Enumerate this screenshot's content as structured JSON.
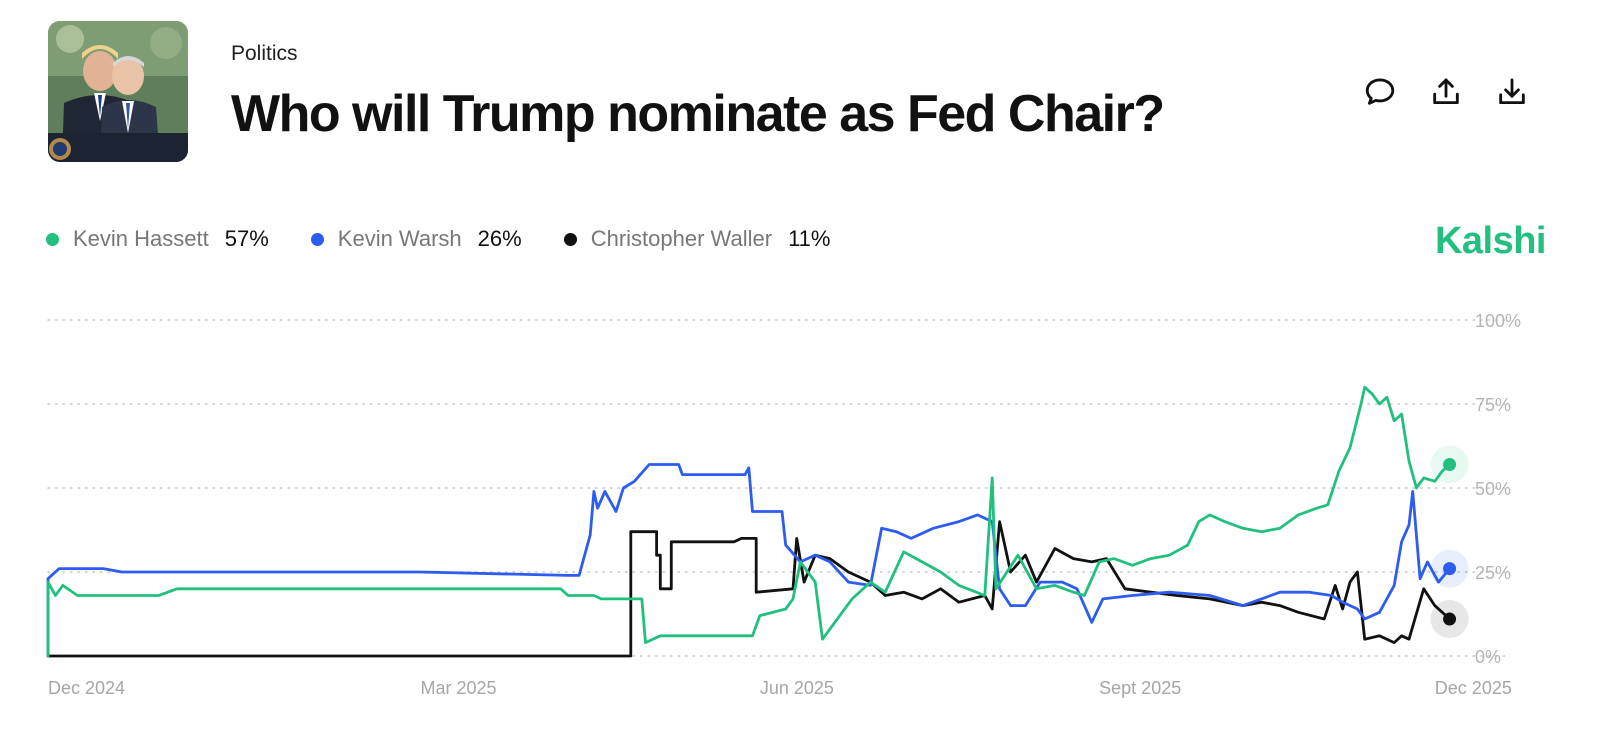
{
  "header": {
    "category": "Politics",
    "title": "Who will Trump nominate as Fed Chair?",
    "brand": "Kalshi",
    "actions": [
      {
        "name": "comment",
        "icon": "comment-icon"
      },
      {
        "name": "share",
        "icon": "share-icon"
      },
      {
        "name": "download",
        "icon": "download-icon"
      }
    ]
  },
  "legend": [
    {
      "name": "Kevin Hassett",
      "value": "57%",
      "color": "#21c07f"
    },
    {
      "name": "Kevin Warsh",
      "value": "26%",
      "color": "#2c5cf0"
    },
    {
      "name": "Christopher Waller",
      "value": "11%",
      "color": "#111111"
    }
  ],
  "chart_data": {
    "type": "line",
    "title": "Who will Trump nominate as Fed Chair?",
    "xlabel": "",
    "ylabel": "",
    "x_range": [
      "2024-11-20",
      "2025-12-10"
    ],
    "ylim": [
      0,
      100
    ],
    "y_ticks": [
      0,
      25,
      50,
      75,
      100
    ],
    "y_tick_labels": [
      "0%",
      "25%",
      "50%",
      "75%",
      "100%"
    ],
    "x_ticks": [
      {
        "date": "2024-11-20",
        "label": "Dec 2024"
      },
      {
        "date": "2025-03-01",
        "label": "Mar 2025"
      },
      {
        "date": "2025-06-01",
        "label": "Jun 2025"
      },
      {
        "date": "2025-09-01",
        "label": "Sept 2025"
      },
      {
        "date": "2025-12-01",
        "label": "Dec 2025"
      }
    ],
    "grid": true,
    "series": [
      {
        "name": "Kevin Hassett",
        "color": "#21c07f",
        "last_value": 57,
        "points": [
          [
            "2024-11-20",
            0
          ],
          [
            "2024-11-20",
            22
          ],
          [
            "2024-11-22",
            18
          ],
          [
            "2024-11-24",
            21
          ],
          [
            "2024-11-28",
            18
          ],
          [
            "2024-12-20",
            18
          ],
          [
            "2024-12-25",
            20
          ],
          [
            "2025-01-30",
            20
          ],
          [
            "2025-03-10",
            20
          ],
          [
            "2025-04-08",
            20
          ],
          [
            "2025-04-10",
            18
          ],
          [
            "2025-04-17",
            18
          ],
          [
            "2025-04-19",
            17
          ],
          [
            "2025-04-30",
            17
          ],
          [
            "2025-05-01",
            4
          ],
          [
            "2025-05-05",
            6
          ],
          [
            "2025-05-20",
            6
          ],
          [
            "2025-05-30",
            6
          ],
          [
            "2025-06-01",
            12
          ],
          [
            "2025-06-08",
            14
          ],
          [
            "2025-06-10",
            17
          ],
          [
            "2025-06-12",
            28
          ],
          [
            "2025-06-16",
            22
          ],
          [
            "2025-06-18",
            5
          ],
          [
            "2025-06-22",
            11
          ],
          [
            "2025-06-26",
            17
          ],
          [
            "2025-07-01",
            22
          ],
          [
            "2025-07-05",
            19
          ],
          [
            "2025-07-10",
            31
          ],
          [
            "2025-07-15",
            28
          ],
          [
            "2025-07-20",
            25
          ],
          [
            "2025-07-25",
            21
          ],
          [
            "2025-08-01",
            18
          ],
          [
            "2025-08-03",
            53
          ],
          [
            "2025-08-04",
            20
          ],
          [
            "2025-08-10",
            30
          ],
          [
            "2025-08-15",
            20
          ],
          [
            "2025-08-20",
            21
          ],
          [
            "2025-08-25",
            19
          ],
          [
            "2025-08-28",
            18
          ],
          [
            "2025-09-01",
            28
          ],
          [
            "2025-09-05",
            29
          ],
          [
            "2025-09-10",
            27
          ],
          [
            "2025-09-15",
            29
          ],
          [
            "2025-09-20",
            30
          ],
          [
            "2025-09-25",
            33
          ],
          [
            "2025-09-28",
            40
          ],
          [
            "2025-10-01",
            42
          ],
          [
            "2025-10-05",
            40
          ],
          [
            "2025-10-10",
            38
          ],
          [
            "2025-10-15",
            37
          ],
          [
            "2025-10-20",
            38
          ],
          [
            "2025-10-25",
            42
          ],
          [
            "2025-10-30",
            44
          ],
          [
            "2025-11-02",
            45
          ],
          [
            "2025-11-05",
            55
          ],
          [
            "2025-11-08",
            62
          ],
          [
            "2025-11-11",
            75
          ],
          [
            "2025-11-12",
            80
          ],
          [
            "2025-11-14",
            78
          ],
          [
            "2025-11-16",
            75
          ],
          [
            "2025-11-18",
            77
          ],
          [
            "2025-11-20",
            70
          ],
          [
            "2025-11-22",
            72
          ],
          [
            "2025-11-24",
            58
          ],
          [
            "2025-11-26",
            50
          ],
          [
            "2025-11-28",
            53
          ],
          [
            "2025-12-01",
            52
          ],
          [
            "2025-12-03",
            55
          ],
          [
            "2025-12-05",
            57
          ]
        ]
      },
      {
        "name": "Kevin Warsh",
        "color": "#2c5cf0",
        "last_value": 26,
        "points": [
          [
            "2024-11-20",
            0
          ],
          [
            "2024-11-20",
            23
          ],
          [
            "2024-11-23",
            26
          ],
          [
            "2024-12-05",
            26
          ],
          [
            "2024-12-10",
            25
          ],
          [
            "2025-03-01",
            25
          ],
          [
            "2025-04-10",
            24
          ],
          [
            "2025-04-13",
            24
          ],
          [
            "2025-04-14",
            28
          ],
          [
            "2025-04-16",
            36
          ],
          [
            "2025-04-17",
            49
          ],
          [
            "2025-04-18",
            44
          ],
          [
            "2025-04-20",
            49
          ],
          [
            "2025-04-23",
            43
          ],
          [
            "2025-04-25",
            50
          ],
          [
            "2025-04-28",
            52
          ],
          [
            "2025-05-02",
            57
          ],
          [
            "2025-05-10",
            57
          ],
          [
            "2025-05-11",
            54
          ],
          [
            "2025-05-20",
            54
          ],
          [
            "2025-05-28",
            54
          ],
          [
            "2025-05-29",
            56
          ],
          [
            "2025-05-30",
            43
          ],
          [
            "2025-06-07",
            43
          ],
          [
            "2025-06-08",
            33
          ],
          [
            "2025-06-12",
            28
          ],
          [
            "2025-06-16",
            30
          ],
          [
            "2025-06-20",
            28
          ],
          [
            "2025-06-25",
            22
          ],
          [
            "2025-07-01",
            21
          ],
          [
            "2025-07-04",
            38
          ],
          [
            "2025-07-08",
            37
          ],
          [
            "2025-07-12",
            35
          ],
          [
            "2025-07-18",
            38
          ],
          [
            "2025-07-25",
            40
          ],
          [
            "2025-07-30",
            42
          ],
          [
            "2025-08-03",
            40
          ],
          [
            "2025-08-05",
            20
          ],
          [
            "2025-08-08",
            15
          ],
          [
            "2025-08-12",
            15
          ],
          [
            "2025-08-16",
            22
          ],
          [
            "2025-08-22",
            22
          ],
          [
            "2025-08-26",
            20
          ],
          [
            "2025-08-30",
            10
          ],
          [
            "2025-09-02",
            17
          ],
          [
            "2025-09-10",
            18
          ],
          [
            "2025-09-20",
            19
          ],
          [
            "2025-10-01",
            18
          ],
          [
            "2025-10-10",
            15
          ],
          [
            "2025-10-15",
            17
          ],
          [
            "2025-10-20",
            19
          ],
          [
            "2025-10-28",
            19
          ],
          [
            "2025-11-03",
            18
          ],
          [
            "2025-11-06",
            16
          ],
          [
            "2025-11-10",
            14
          ],
          [
            "2025-11-12",
            11
          ],
          [
            "2025-11-16",
            13
          ],
          [
            "2025-11-20",
            21
          ],
          [
            "2025-11-22",
            34
          ],
          [
            "2025-11-24",
            39
          ],
          [
            "2025-11-25",
            49
          ],
          [
            "2025-11-27",
            23
          ],
          [
            "2025-11-29",
            28
          ],
          [
            "2025-12-02",
            22
          ],
          [
            "2025-12-05",
            26
          ]
        ]
      },
      {
        "name": "Christopher Waller",
        "color": "#111111",
        "last_value": 11,
        "points": [
          [
            "2024-11-20",
            0
          ],
          [
            "2025-04-27",
            0
          ],
          [
            "2025-04-27",
            37
          ],
          [
            "2025-05-04",
            37
          ],
          [
            "2025-05-04",
            30
          ],
          [
            "2025-05-05",
            30
          ],
          [
            "2025-05-05",
            20
          ],
          [
            "2025-05-08",
            20
          ],
          [
            "2025-05-08",
            34
          ],
          [
            "2025-05-25",
            34
          ],
          [
            "2025-05-27",
            35
          ],
          [
            "2025-05-31",
            35
          ],
          [
            "2025-05-31",
            19
          ],
          [
            "2025-06-10",
            20
          ],
          [
            "2025-06-11",
            35
          ],
          [
            "2025-06-13",
            22
          ],
          [
            "2025-06-16",
            30
          ],
          [
            "2025-06-20",
            29
          ],
          [
            "2025-06-25",
            25
          ],
          [
            "2025-07-01",
            22
          ],
          [
            "2025-07-05",
            18
          ],
          [
            "2025-07-10",
            19
          ],
          [
            "2025-07-15",
            17
          ],
          [
            "2025-07-20",
            20
          ],
          [
            "2025-07-25",
            16
          ],
          [
            "2025-08-01",
            18
          ],
          [
            "2025-08-03",
            14
          ],
          [
            "2025-08-05",
            40
          ],
          [
            "2025-08-08",
            25
          ],
          [
            "2025-08-12",
            30
          ],
          [
            "2025-08-15",
            22
          ],
          [
            "2025-08-20",
            32
          ],
          [
            "2025-08-25",
            29
          ],
          [
            "2025-08-30",
            28
          ],
          [
            "2025-09-03",
            29
          ],
          [
            "2025-09-08",
            20
          ],
          [
            "2025-09-15",
            19
          ],
          [
            "2025-09-22",
            18
          ],
          [
            "2025-10-01",
            17
          ],
          [
            "2025-10-10",
            15
          ],
          [
            "2025-10-15",
            16
          ],
          [
            "2025-10-20",
            15
          ],
          [
            "2025-10-25",
            13
          ],
          [
            "2025-11-01",
            11
          ],
          [
            "2025-11-04",
            21
          ],
          [
            "2025-11-06",
            14
          ],
          [
            "2025-11-08",
            22
          ],
          [
            "2025-11-10",
            25
          ],
          [
            "2025-11-12",
            5
          ],
          [
            "2025-11-16",
            6
          ],
          [
            "2025-11-20",
            4
          ],
          [
            "2025-11-22",
            6
          ],
          [
            "2025-11-24",
            5
          ],
          [
            "2025-11-28",
            20
          ],
          [
            "2025-12-01",
            15
          ],
          [
            "2025-12-05",
            11
          ]
        ]
      }
    ]
  }
}
